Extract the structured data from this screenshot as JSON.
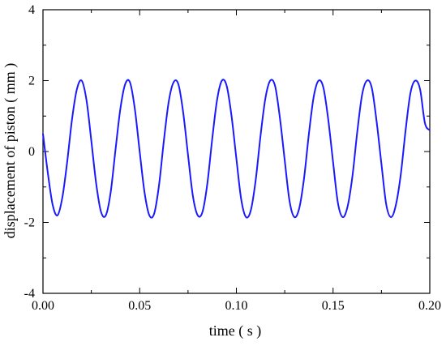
{
  "chart_data": {
    "type": "line",
    "title": "",
    "xlabel": "time ( s )",
    "ylabel": "displacement of piston ( mm )",
    "xlim": [
      0.0,
      0.2
    ],
    "ylim": [
      -4,
      4
    ],
    "x_ticks": [
      0.0,
      0.05,
      0.1,
      0.15,
      0.2
    ],
    "x_tick_labels": [
      "0.00",
      "0.05",
      "0.10",
      "0.15",
      "0.20"
    ],
    "y_ticks": [
      -4,
      -2,
      0,
      2,
      4
    ],
    "y_tick_labels": [
      "-4",
      "-2",
      "0",
      "2",
      "4"
    ],
    "grid": false,
    "legend": "none",
    "series": [
      {
        "color": "#1a1aff",
        "x": [
          0.0,
          0.0025,
          0.005,
          0.0075,
          0.01,
          0.0125,
          0.015,
          0.0175,
          0.02,
          0.0225,
          0.025,
          0.0275,
          0.03,
          0.0325,
          0.035,
          0.0375,
          0.04,
          0.0425,
          0.045,
          0.0475,
          0.05,
          0.0525,
          0.055,
          0.0575,
          0.06,
          0.0625,
          0.065,
          0.0675,
          0.07,
          0.0725,
          0.075,
          0.0775,
          0.08,
          0.0825,
          0.085,
          0.0875,
          0.09,
          0.0925,
          0.095,
          0.0975,
          0.1,
          0.1025,
          0.105,
          0.1075,
          0.11,
          0.1125,
          0.115,
          0.1175,
          0.12,
          0.1225,
          0.125,
          0.1275,
          0.13,
          0.1325,
          0.135,
          0.1375,
          0.14,
          0.1425,
          0.145,
          0.1475,
          0.15,
          0.1525,
          0.155,
          0.1575,
          0.16,
          0.1625,
          0.165,
          0.1675,
          0.17,
          0.1725,
          0.175,
          0.1775,
          0.18,
          0.1825,
          0.185,
          0.1875,
          0.19,
          0.1925,
          0.195,
          0.1975,
          0.2
        ],
        "y": [
          0.5,
          -0.6,
          -1.5,
          -1.8,
          -1.3,
          -0.3,
          0.9,
          1.75,
          2.0,
          1.45,
          0.3,
          -0.9,
          -1.7,
          -1.8,
          -1.15,
          0.05,
          1.2,
          1.9,
          1.95,
          1.2,
          0.0,
          -1.15,
          -1.8,
          -1.75,
          -0.95,
          0.3,
          1.4,
          1.95,
          1.9,
          1.1,
          -0.1,
          -1.25,
          -1.8,
          -1.7,
          -0.9,
          0.35,
          1.45,
          2.0,
          1.85,
          1.0,
          -0.2,
          -1.35,
          -1.85,
          -1.65,
          -0.8,
          0.45,
          1.5,
          2.0,
          1.85,
          0.95,
          -0.25,
          -1.4,
          -1.85,
          -1.6,
          -0.75,
          0.5,
          1.55,
          2.0,
          1.8,
          0.9,
          -0.3,
          -1.45,
          -1.85,
          -1.55,
          -0.7,
          0.55,
          1.6,
          2.0,
          1.8,
          0.85,
          -0.35,
          -1.5,
          -1.85,
          -1.5,
          -0.65,
          0.6,
          1.65,
          2.0,
          1.75,
          0.8,
          0.6
        ]
      }
    ]
  }
}
